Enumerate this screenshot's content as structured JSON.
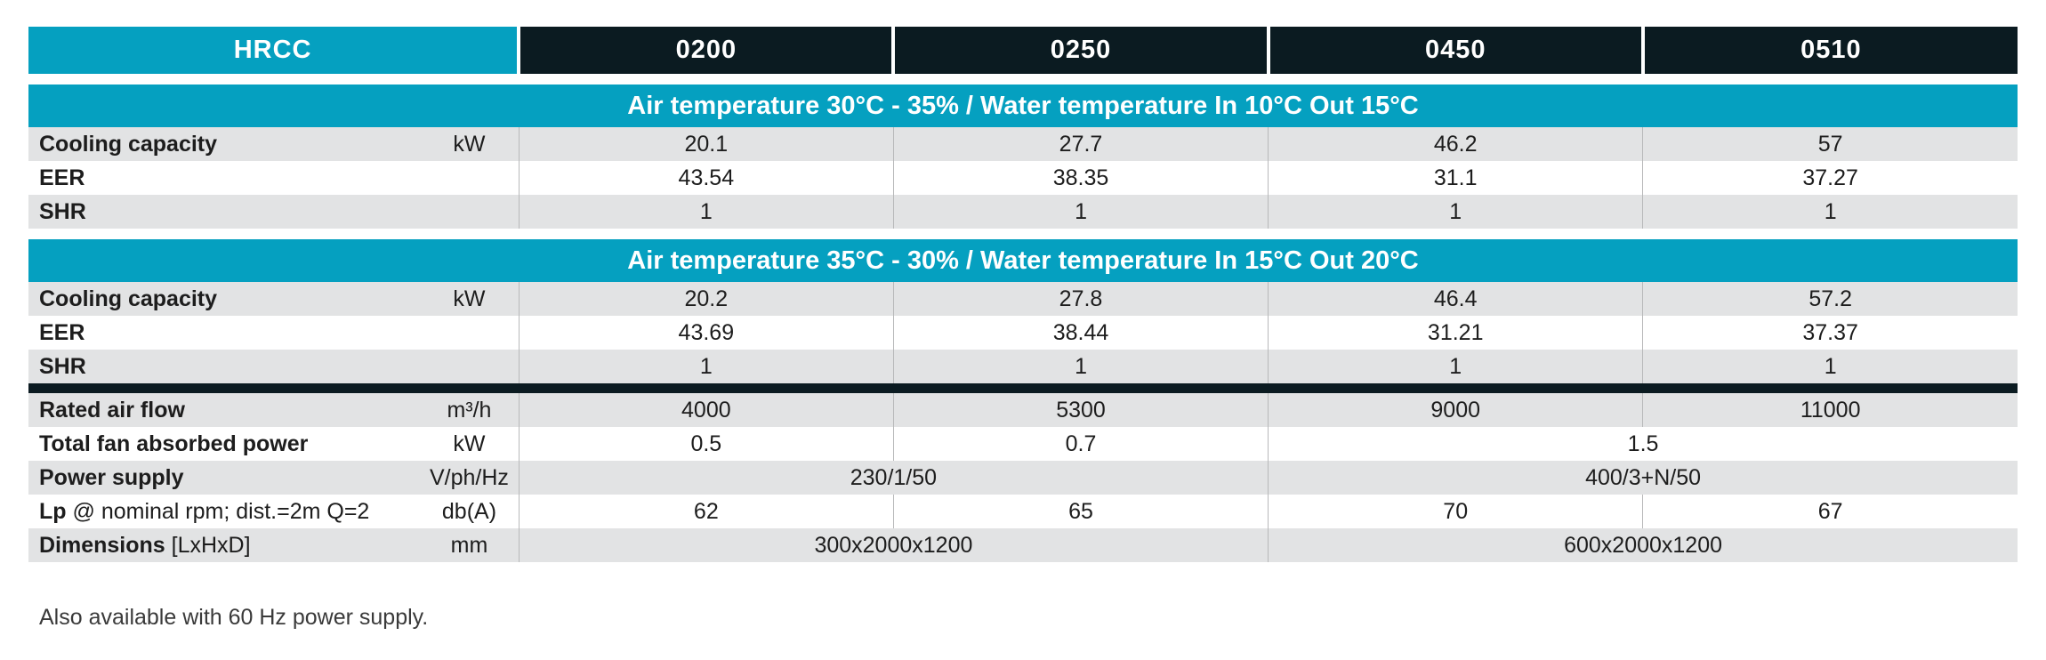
{
  "header": {
    "brand": "HRCC",
    "models": [
      "0200",
      "0250",
      "0450",
      "0510"
    ]
  },
  "section1": {
    "title": "Air temperature 30°C - 35% / Water temperature In 10°C Out 15°C",
    "rows": [
      {
        "label": "Cooling capacity",
        "unit": "kW",
        "values": [
          "20.1",
          "27.7",
          "46.2",
          "57"
        ]
      },
      {
        "label": "EER",
        "unit": "",
        "values": [
          "43.54",
          "38.35",
          "31.1",
          "37.27"
        ]
      },
      {
        "label": "SHR",
        "unit": "",
        "values": [
          "1",
          "1",
          "1",
          "1"
        ]
      }
    ]
  },
  "section2": {
    "title": "Air temperature 35°C - 30% / Water temperature In 15°C Out 20°C",
    "rows": [
      {
        "label": "Cooling capacity",
        "unit": "kW",
        "values": [
          "20.2",
          "27.8",
          "46.4",
          "57.2"
        ]
      },
      {
        "label": "EER",
        "unit": "",
        "values": [
          "43.69",
          "38.44",
          "31.21",
          "37.37"
        ]
      },
      {
        "label": "SHR",
        "unit": "",
        "values": [
          "1",
          "1",
          "1",
          "1"
        ]
      }
    ]
  },
  "general": {
    "airflow": {
      "label": "Rated air flow",
      "unit": "m³/h",
      "values": [
        "4000",
        "5300",
        "9000",
        "11000"
      ]
    },
    "fan_power": {
      "label": "Total fan absorbed power",
      "unit": "kW",
      "values": [
        "0.5",
        "0.7",
        "1.5"
      ]
    },
    "power_supply": {
      "label": "Power supply",
      "unit": "V/ph/Hz",
      "values": [
        "230/1/50",
        "400/3+N/50"
      ]
    },
    "lp": {
      "label": "Lp",
      "sub": " @ nominal rpm; dist.=2m Q=2",
      "unit": "db(A)",
      "values": [
        "62",
        "65",
        "70",
        "67"
      ]
    },
    "dimensions": {
      "label": "Dimensions",
      "sub": " [LxHxD]",
      "unit": "mm",
      "values": [
        "300x2000x1200",
        "600x2000x1200"
      ]
    }
  },
  "footnote": "Also available with 60 Hz power supply.",
  "colors": {
    "accent": "#05a0c0",
    "dark": "#0b1b21",
    "stripe": "#e2e3e4"
  }
}
